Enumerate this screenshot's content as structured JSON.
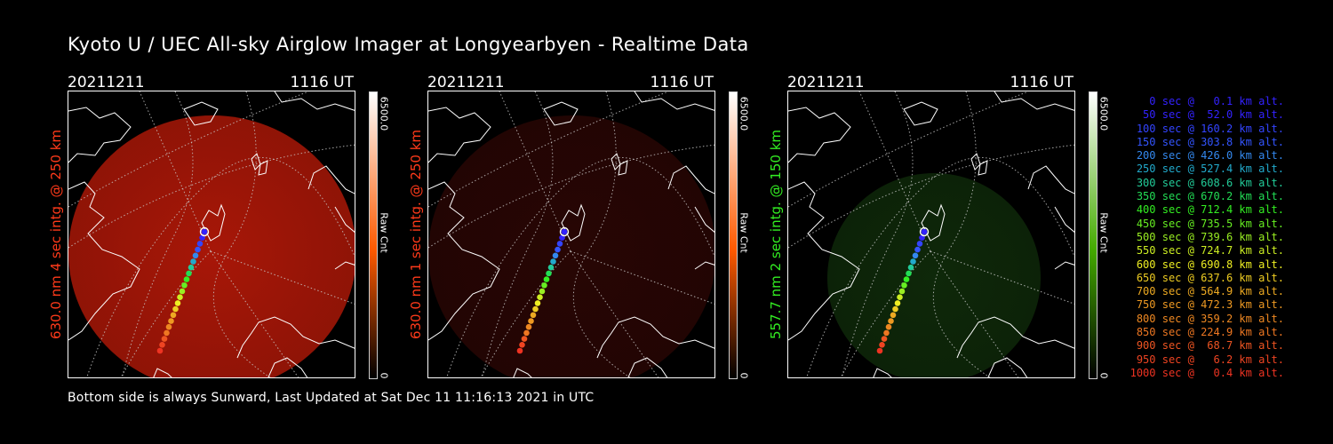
{
  "title": "Kyoto U / UEC All-sky Airglow Imager at Longyearbyen - Realtime Data",
  "footer": "Bottom side is always Sunward, Last Updated at Sat Dec 11 11:16:13 2021 in UTC",
  "panels": [
    {
      "date": "20211211",
      "time": "1116 UT",
      "side_label": "630.0 nm 4 sec intg. @ 250 km",
      "label_color": "#ff3a1a",
      "image_color": "#b01808",
      "image_opacity": 0.95,
      "colorbar_top_color": "#ffffff",
      "colorbar_mid_color": "#ff5a00",
      "colorbar_bottom_color": "#000000",
      "colorbar_max": "6500.0",
      "colorbar_min": "0",
      "colorbar_label": "Raw Cnt"
    },
    {
      "date": "20211211",
      "time": "1116 UT",
      "side_label": "630.0 nm 1 sec intg. @ 250 km",
      "label_color": "#ff3a1a",
      "image_color": "#2a0604",
      "image_opacity": 0.95,
      "colorbar_top_color": "#ffffff",
      "colorbar_mid_color": "#ff5a00",
      "colorbar_bottom_color": "#000000",
      "colorbar_max": "6500.0",
      "colorbar_min": "0",
      "colorbar_label": "Raw Cnt"
    },
    {
      "date": "20211211",
      "time": "1116 UT",
      "side_label": "557.7 nm 2 sec intg. @ 150 km",
      "label_color": "#33ee22",
      "image_color": "#0f2a0a",
      "image_opacity": 0.95,
      "colorbar_top_color": "#ffffff",
      "colorbar_mid_color": "#44aa00",
      "colorbar_bottom_color": "#000000",
      "colorbar_max": "6500.0",
      "colorbar_min": "0",
      "colorbar_label": "Raw Cnt"
    }
  ],
  "legend": [
    {
      "text": "0 sec @   0.1 km alt.",
      "color": "#3322ff"
    },
    {
      "text": "50 sec @  52.0 km alt.",
      "color": "#3322ff"
    },
    {
      "text": "100 sec @ 160.2 km alt.",
      "color": "#3344ff"
    },
    {
      "text": "150 sec @ 303.8 km alt.",
      "color": "#3355ff"
    },
    {
      "text": "200 sec @ 426.0 km alt.",
      "color": "#3388ee"
    },
    {
      "text": "250 sec @ 527.4 km alt.",
      "color": "#22aacc"
    },
    {
      "text": "300 sec @ 608.6 km alt.",
      "color": "#22cc99"
    },
    {
      "text": "350 sec @ 670.2 km alt.",
      "color": "#22dd55"
    },
    {
      "text": "400 sec @ 712.4 km alt.",
      "color": "#33ee22"
    },
    {
      "text": "450 sec @ 735.5 km alt.",
      "color": "#66ee22"
    },
    {
      "text": "500 sec @ 739.6 km alt.",
      "color": "#99ee22"
    },
    {
      "text": "550 sec @ 724.7 km alt.",
      "color": "#ccee22"
    },
    {
      "text": "600 sec @ 690.8 km alt.",
      "color": "#eeee22"
    },
    {
      "text": "650 sec @ 637.6 km alt.",
      "color": "#eecc22"
    },
    {
      "text": "700 sec @ 564.9 km alt.",
      "color": "#eeaa22"
    },
    {
      "text": "750 sec @ 472.3 km alt.",
      "color": "#ee9922"
    },
    {
      "text": "800 sec @ 359.2 km alt.",
      "color": "#ee8822"
    },
    {
      "text": "850 sec @ 224.9 km alt.",
      "color": "#ee7722"
    },
    {
      "text": "900 sec @  68.7 km alt.",
      "color": "#ee5522"
    },
    {
      "text": "950 sec @   6.2 km alt.",
      "color": "#ee4422"
    },
    {
      "text": "1000 sec @   0.4 km alt.",
      "color": "#ee3322"
    }
  ]
}
